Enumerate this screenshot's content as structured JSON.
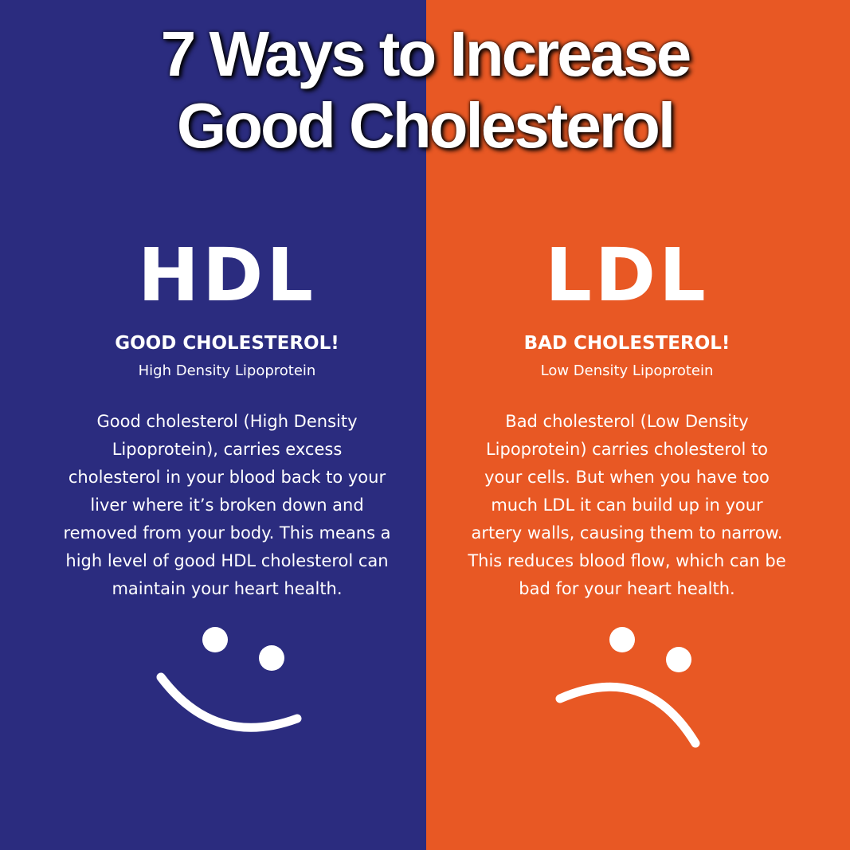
{
  "title": [
    "7 Ways to Increase",
    "Good Cholesterol"
  ],
  "panels": [
    {
      "heading": "HDL",
      "subtitle": "GOOD CHOLESTEROL!",
      "caption": "High Density Lipoprotein",
      "body": [
        "Good cholesterol (High Density",
        "Lipoprotein), carries excess",
        "cholesterol in your blood back to your",
        "liver where it’s broken down and",
        "removed from your body. This means a",
        "high level of good HDL cholesterol can",
        "maintain your heart health."
      ]
    },
    {
      "heading": "LDL",
      "subtitle": "BAD CHOLESTEROL!",
      "caption": "Low Density Lipoprotein",
      "body": [
        "Bad cholesterol (Low Density",
        "Lipoprotein) carries cholesterol to",
        "your cells. But when you have too",
        "much LDL it can build up in your",
        "artery walls, causing them to narrow.",
        "This reduces blood flow, which can be",
        "bad for your heart health."
      ]
    }
  ]
}
